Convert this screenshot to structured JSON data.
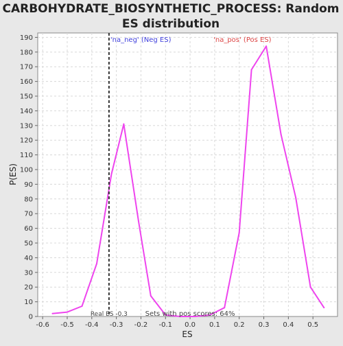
{
  "chart_data": {
    "type": "line",
    "title_lines": [
      "CARBOHYDRATE_BIOSYNTHETIC_PROCESS: Random",
      "ES distribution"
    ],
    "xlabel": "ES",
    "ylabel": "P(ES)",
    "xlim": [
      -0.62,
      0.6
    ],
    "ylim": [
      0,
      193
    ],
    "x_ticks": [
      -0.6,
      -0.5,
      -0.4,
      -0.3,
      -0.2,
      -0.1,
      0.0,
      0.1,
      0.2,
      0.3,
      0.4,
      0.5
    ],
    "x_tick_labels": [
      "-0.6",
      "-0.5",
      "-0.4",
      "-0.3",
      "-0.2",
      "-0.1",
      "0.0",
      "0.1",
      "0.2",
      "0.3",
      "0.4",
      "0.5"
    ],
    "y_ticks": [
      0,
      10,
      20,
      30,
      40,
      50,
      60,
      70,
      80,
      90,
      100,
      110,
      120,
      130,
      140,
      150,
      160,
      170,
      180,
      190
    ],
    "grid": true,
    "series": [
      {
        "color": "#ee44ee",
        "x": [
          -0.56,
          -0.5,
          -0.44,
          -0.38,
          -0.32,
          -0.27,
          -0.21,
          -0.16,
          -0.1,
          -0.04,
          0.02,
          0.08,
          0.14,
          0.2,
          0.25,
          0.31,
          0.37,
          0.43,
          0.49,
          0.545
        ],
        "y": [
          2,
          3,
          7,
          36,
          97,
          131,
          65,
          14,
          1,
          0,
          0,
          1,
          6,
          57,
          168,
          184,
          124,
          81,
          20,
          6
        ]
      }
    ],
    "real_es": -0.33,
    "annotations": {
      "neg_label": "'na_neg' (Neg ES)",
      "pos_label": "'na_pos' (Pos ES)",
      "real_es_label": "Real ES -0.3",
      "pos_scores_label": "Sets with pos scores: 64%"
    },
    "colors": {
      "neg": "#4040dd",
      "pos": "#dd4444",
      "line": "#ee44ee",
      "marker": "#000000",
      "background": "#e8e8e8",
      "plot_background": "#ffffff"
    }
  }
}
